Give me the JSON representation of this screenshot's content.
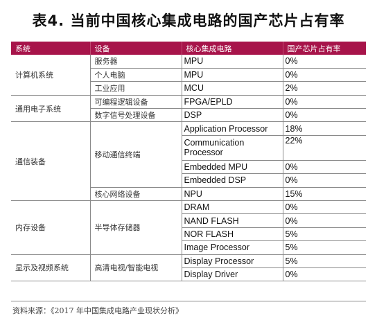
{
  "title": "表4. 当前中国核心集成电路的国产芯片占有率",
  "headers": [
    "系统",
    "设备",
    "核心集成电路",
    "国产芯片占有率"
  ],
  "colors": {
    "header_bg": "#a7144a",
    "header_text": "#ffffff"
  },
  "groups": [
    {
      "system": "计算机系统",
      "devices": [
        {
          "name": "服务器",
          "chips": [
            {
              "ic": "MPU",
              "share": "0%"
            }
          ]
        },
        {
          "name": "个人电脑",
          "chips": [
            {
              "ic": "MPU",
              "share": "0%"
            }
          ]
        },
        {
          "name": "工业应用",
          "chips": [
            {
              "ic": "MCU",
              "share": "2%"
            }
          ]
        }
      ]
    },
    {
      "system": "通用电子系统",
      "devices": [
        {
          "name": "可编程逻辑设备",
          "chips": [
            {
              "ic": "FPGA/EPLD",
              "share": "0%"
            }
          ]
        },
        {
          "name": "数字信号处理设备",
          "chips": [
            {
              "ic": "DSP",
              "share": "0%"
            }
          ]
        }
      ]
    },
    {
      "system": "通信装备",
      "devices": [
        {
          "name": "移动通信终端",
          "chips": [
            {
              "ic": "Application Processor",
              "share": "18%"
            },
            {
              "ic": "Communication Processor",
              "share": "22%"
            },
            {
              "ic": "Embedded MPU",
              "share": "0%"
            },
            {
              "ic": "Embedded DSP",
              "share": "0%"
            }
          ]
        },
        {
          "name": "核心网络设备",
          "chips": [
            {
              "ic": "NPU",
              "share": "15%"
            }
          ]
        }
      ]
    },
    {
      "system": "内存设备",
      "devices": [
        {
          "name": "半导体存储器",
          "chips": [
            {
              "ic": "DRAM",
              "share": "0%"
            },
            {
              "ic": "NAND FLASH",
              "share": "0%"
            },
            {
              "ic": "NOR FLASH",
              "share": "5%"
            },
            {
              "ic": "Image Processor",
              "share": "5%"
            }
          ]
        }
      ]
    },
    {
      "system": "显示及视频系统",
      "devices": [
        {
          "name": "高清电视/智能电视",
          "chips": [
            {
              "ic": "Display Processor",
              "share": "5%"
            },
            {
              "ic": "Display Driver",
              "share": "0%"
            }
          ]
        }
      ]
    }
  ],
  "source": "资料来源：《2017 年中国集成电路产业现状分析》"
}
